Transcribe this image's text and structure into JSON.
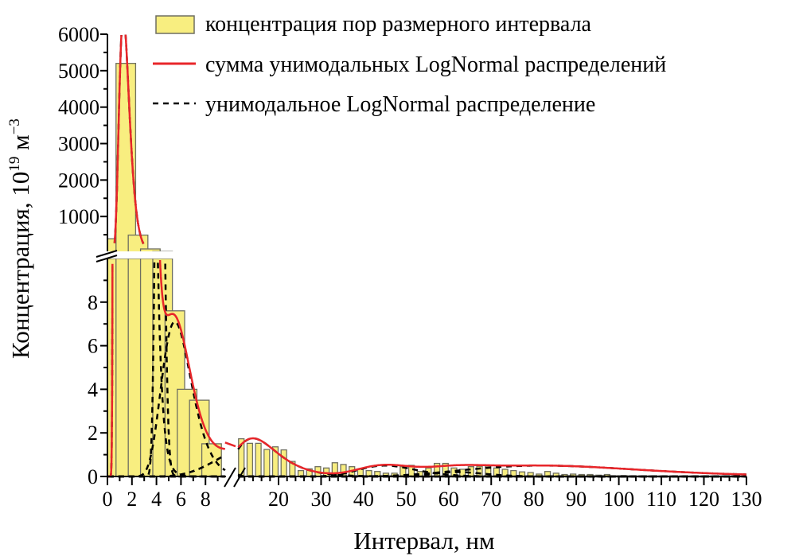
{
  "chart_data": {
    "type": "bar",
    "title": "",
    "xlabel": "Интервал, нм",
    "ylabel_main": "Концентрация, 10",
    "ylabel_exp": "19",
    "ylabel_unit": " м",
    "ylabel_unit_exp": "−3",
    "x_break": [
      9.7,
      10.5
    ],
    "y_break": [
      10,
      0
    ],
    "xlim_left": [
      0,
      9.7
    ],
    "xlim_right": [
      10.5,
      130
    ],
    "ylim_lower": [
      0,
      10
    ],
    "ylim_upper": [
      0,
      6000
    ],
    "x_ticks_left": [
      "0",
      "2",
      "4",
      "6",
      "8"
    ],
    "x_ticks_right": [
      "20",
      "30",
      "40",
      "50",
      "60",
      "70",
      "80",
      "90",
      "100",
      "110",
      "120",
      "130"
    ],
    "y_ticks_lower": [
      "0",
      "2",
      "4",
      "6",
      "8"
    ],
    "y_ticks_upper": [
      "1000",
      "2000",
      "3000",
      "4000",
      "5000",
      "6000"
    ],
    "legend": [
      {
        "label": "концентрация пор размерного интервала",
        "kind": "bar"
      },
      {
        "label": "сумма унимодальных LogNormal распределений",
        "kind": "line"
      },
      {
        "label": "унимодальное LogNormal распределение",
        "kind": "dash"
      }
    ],
    "colors": {
      "bar_fill": "#f8ee80",
      "bar_edge": "#6f6f60",
      "sum": "#e8262a",
      "component": "#000000"
    },
    "bar_width_nm_left": 1.6,
    "bar_width_nm_right": 1.3,
    "bars_left": [
      {
        "start": -0.3,
        "value": 390
      },
      {
        "start": 0.7,
        "value": 5200
      },
      {
        "start": 1.7,
        "value": 490
      },
      {
        "start": 2.7,
        "value": 110
      },
      {
        "start": 3.7,
        "value": 40
      },
      {
        "start": 4.7,
        "value": 7.6
      },
      {
        "start": 5.7,
        "value": 4.0
      },
      {
        "start": 6.7,
        "value": 3.5
      },
      {
        "start": 7.7,
        "value": 1.5
      }
    ],
    "bars_right_start": 10.6,
    "bars_right_step": 2,
    "bars_right": [
      1.73,
      1.52,
      1.52,
      1.24,
      1.36,
      1.22,
      0.69,
      0.27,
      0.35,
      0.45,
      0.39,
      0.63,
      0.55,
      0.45,
      0.33,
      0.27,
      0.23,
      0.15,
      0.15,
      0.45,
      0.51,
      0.23,
      0.39,
      0.6,
      0.6,
      0.39,
      0.33,
      0.45,
      0.47,
      0.47,
      0.39,
      0.33,
      0.27,
      0.21,
      0.18,
      0.11,
      0.23,
      0.15,
      0.09,
      0.11,
      0.09,
      0.09,
      0.06,
      0.09,
      0.03,
      0.04,
      0.02,
      0.02,
      0.02,
      0.01,
      0.01,
      0.01,
      0.01,
      0.01,
      0.01,
      0.01,
      0.01,
      0.01,
      0.01,
      0.01
    ],
    "components": [
      {
        "mode": 1.3,
        "sigma": 0.32,
        "amplitude": 6500,
        "in_sum": true
      },
      {
        "mode": 4.25,
        "sigma": 0.07,
        "amplitude": 30,
        "in_sum": false
      },
      {
        "mode": 5.5,
        "sigma": 0.22,
        "amplitude": 7.1,
        "in_sum": true
      },
      {
        "mode": 14,
        "sigma": 0.35,
        "amplitude": 1.75,
        "in_sum": true
      },
      {
        "mode": 45,
        "sigma": 0.15,
        "amplitude": 0.5,
        "in_sum": true
      },
      {
        "mode": 62,
        "sigma": 0.1,
        "amplitude": 0.2,
        "in_sum": true
      },
      {
        "mode": 82,
        "sigma": 0.25,
        "amplitude": 0.5,
        "in_sum": true
      }
    ]
  }
}
